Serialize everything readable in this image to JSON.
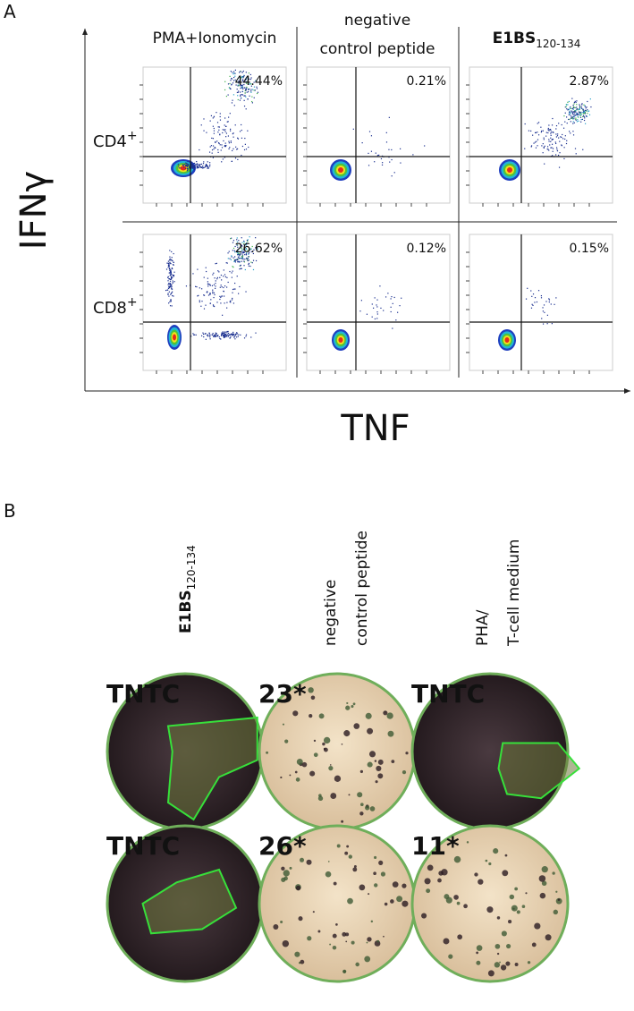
{
  "panel_a": {
    "label": "A",
    "y_axis": "IFNγ",
    "x_axis": "TNF",
    "columns": [
      {
        "name": "PMA+Ionomycin"
      },
      {
        "lines": [
          "negative",
          "control peptide"
        ]
      },
      {
        "name": "E1BS",
        "subscript": "120-134"
      }
    ],
    "rows": [
      {
        "label": "CD4",
        "superscript": "+",
        "percentages": [
          "44.44%",
          "0.21%",
          "2.87%"
        ]
      },
      {
        "label": "CD8",
        "superscript": "+",
        "percentages": [
          "26.62%",
          "0.12%",
          "0.15%"
        ]
      }
    ]
  },
  "panel_b": {
    "label": "B",
    "columns": [
      {
        "name": "E1BS",
        "subscript": "120-134"
      },
      {
        "lines": [
          "negative",
          "control peptide"
        ]
      },
      {
        "lines": [
          "PHA/",
          "T-cell medium"
        ]
      }
    ],
    "wells": [
      [
        "TNTC",
        "23*",
        "TNTC"
      ],
      [
        "TNTC",
        "26*",
        "11*"
      ]
    ]
  }
}
